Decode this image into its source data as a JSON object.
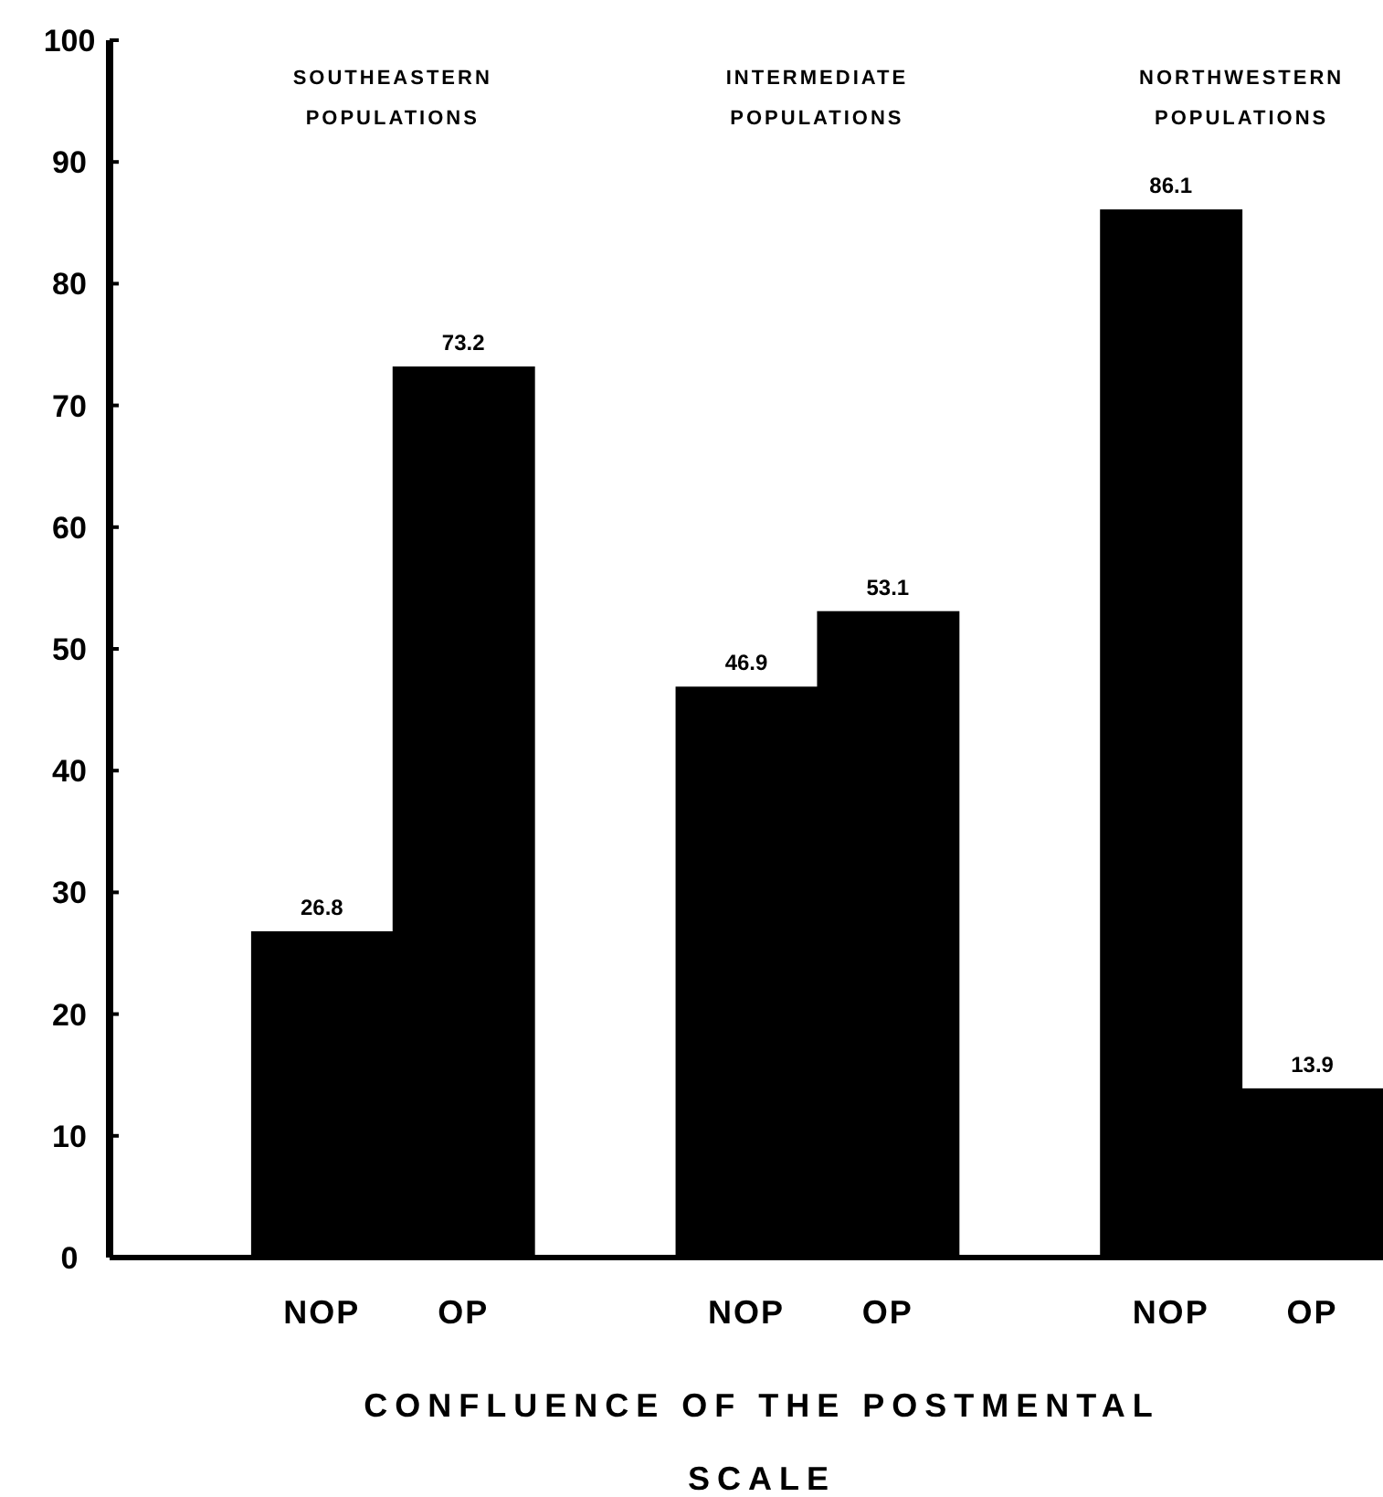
{
  "chart_data": {
    "type": "bar",
    "categories": [
      null,
      "NOP",
      "OP",
      null,
      "NOP",
      "OP",
      null,
      "NOP",
      "OP"
    ],
    "values": [
      null,
      26.8,
      73.2,
      null,
      46.9,
      53.1,
      null,
      86.1,
      13.9
    ],
    "color": "#000000",
    "data_labels": true,
    "ylim": [
      0,
      100
    ],
    "yticks": [
      0,
      10,
      20,
      30,
      40,
      50,
      60,
      70,
      80,
      90,
      100
    ],
    "xlabel": "CONFLUENCE OF THE POSTMENTAL SCALE",
    "annotations": [
      "SOUTHEASTERN POPULATIONS",
      "INTERMEDIATE POPULATIONS",
      "NORTHWESTERN POPULATIONS"
    ],
    "grid": false
  }
}
